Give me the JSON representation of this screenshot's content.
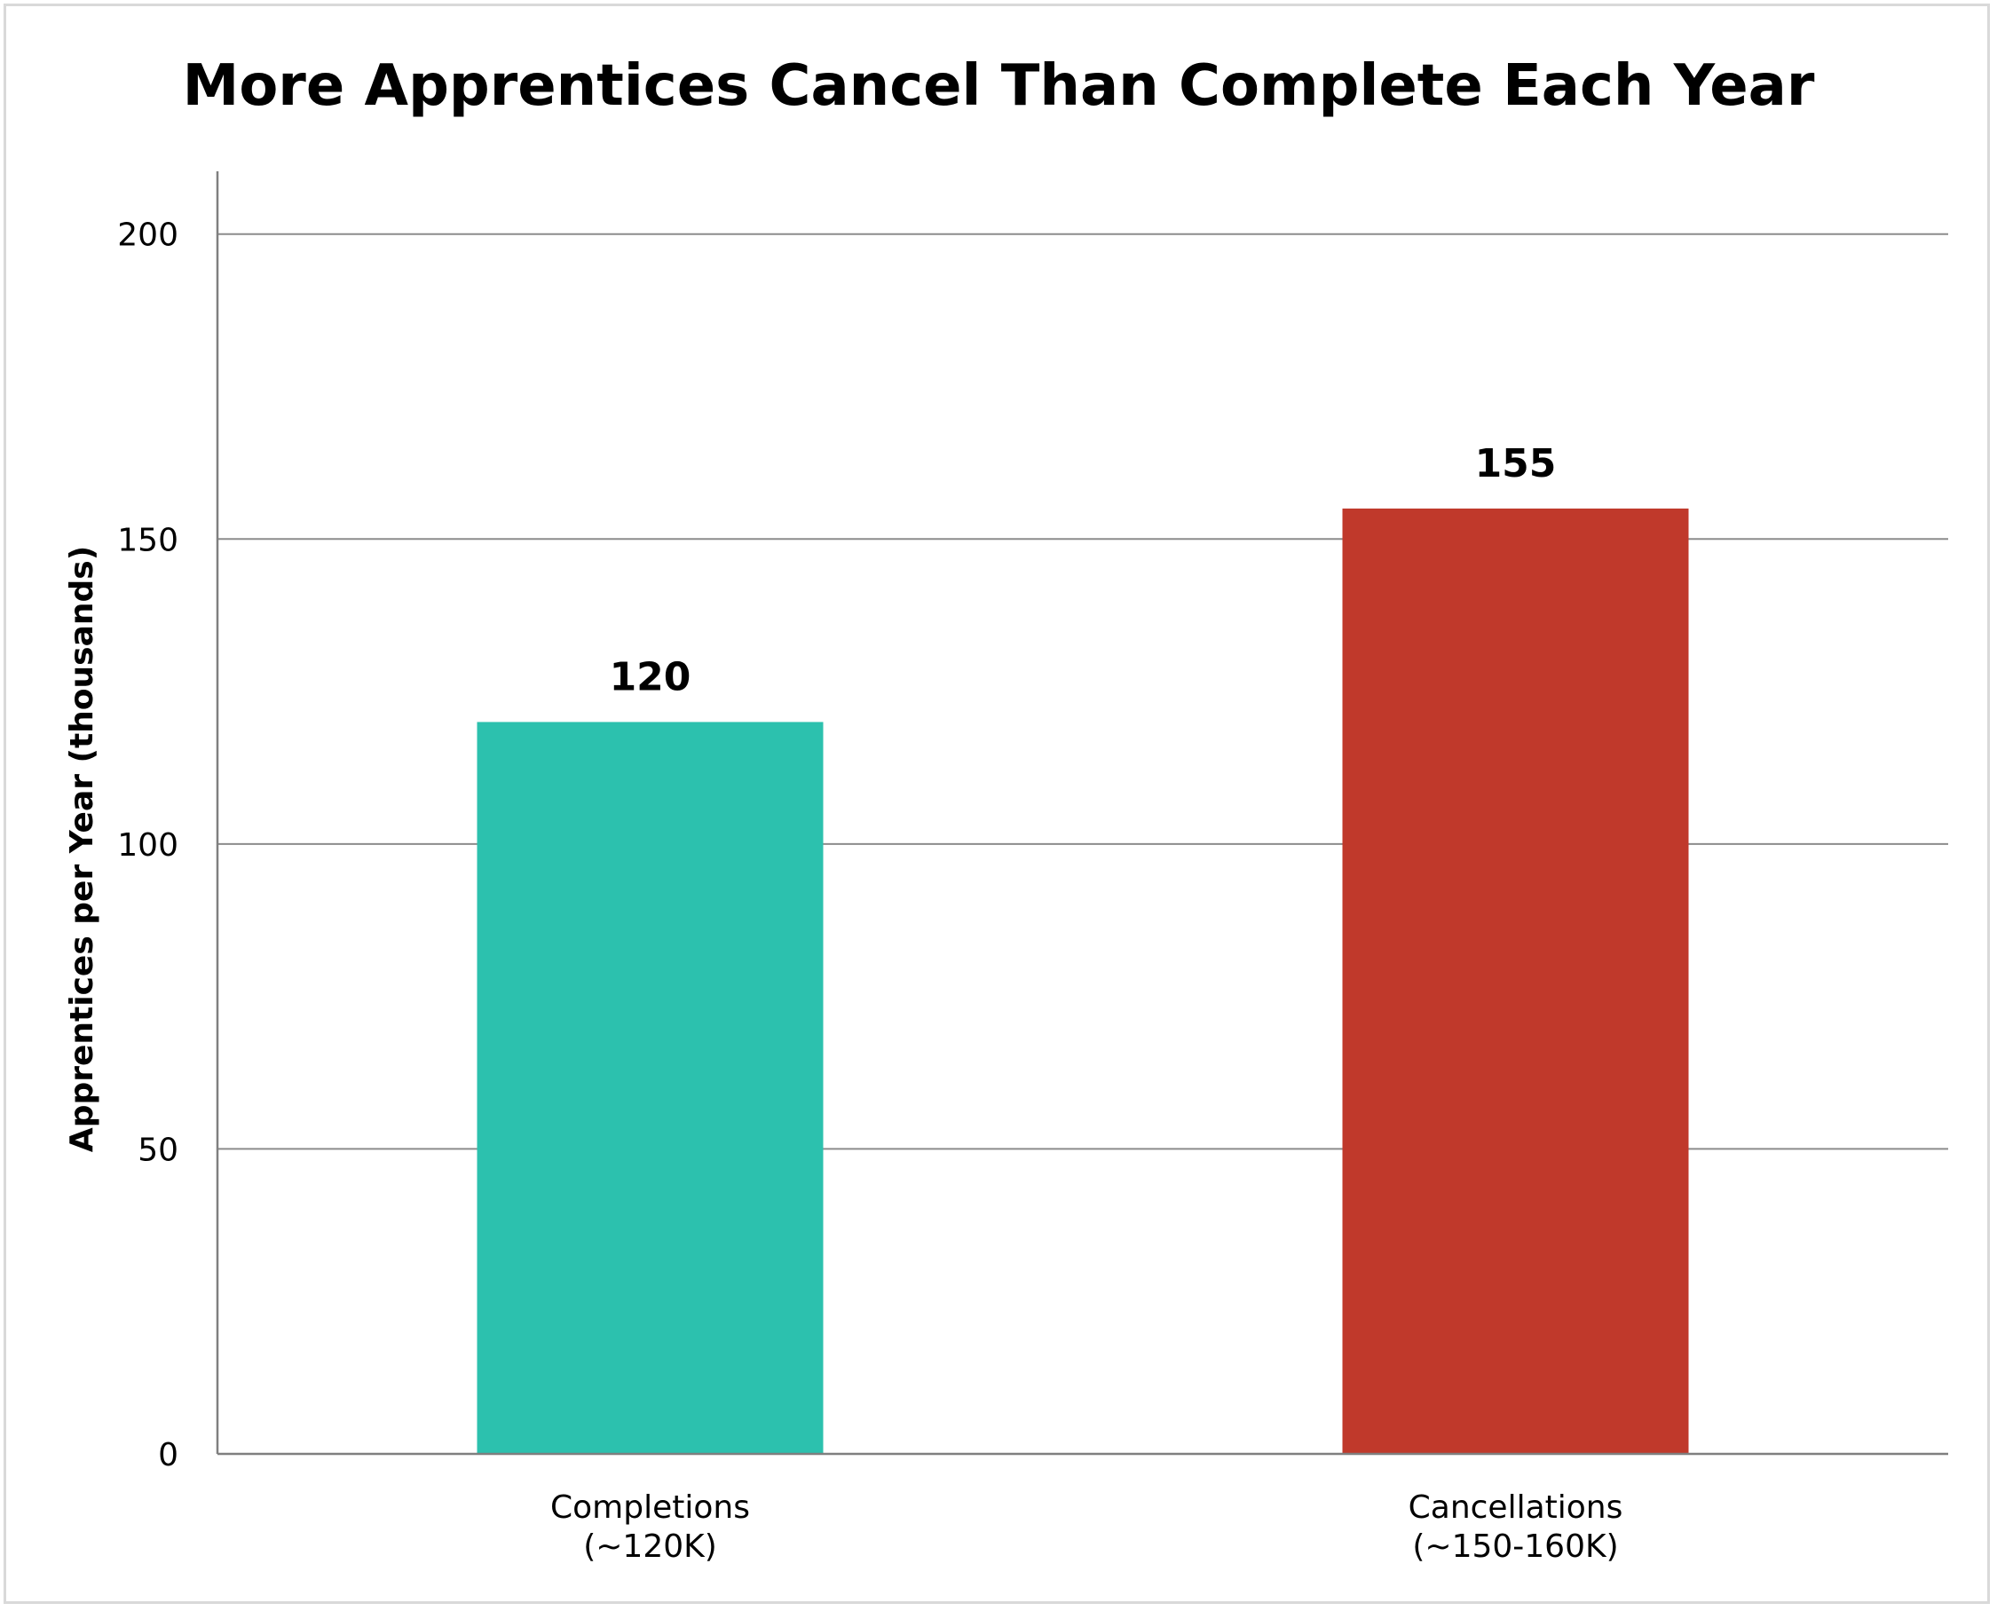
{
  "chart_data": {
    "type": "bar",
    "title": "More Apprentices Cancel Than Complete Each Year",
    "ylabel": "Apprentices per Year (thousands)",
    "xlabel": "",
    "ylim": [
      0,
      210
    ],
    "yticks": [
      0,
      50,
      100,
      150,
      200
    ],
    "categories": [
      [
        "Completions",
        "(~120K)"
      ],
      [
        "Cancellations",
        "(~150-160K)"
      ]
    ],
    "values": [
      120,
      155
    ],
    "data_labels": [
      "120",
      "155"
    ],
    "colors": [
      "#2cc1ae",
      "#c0392b"
    ],
    "grid": true,
    "legend": "none"
  }
}
